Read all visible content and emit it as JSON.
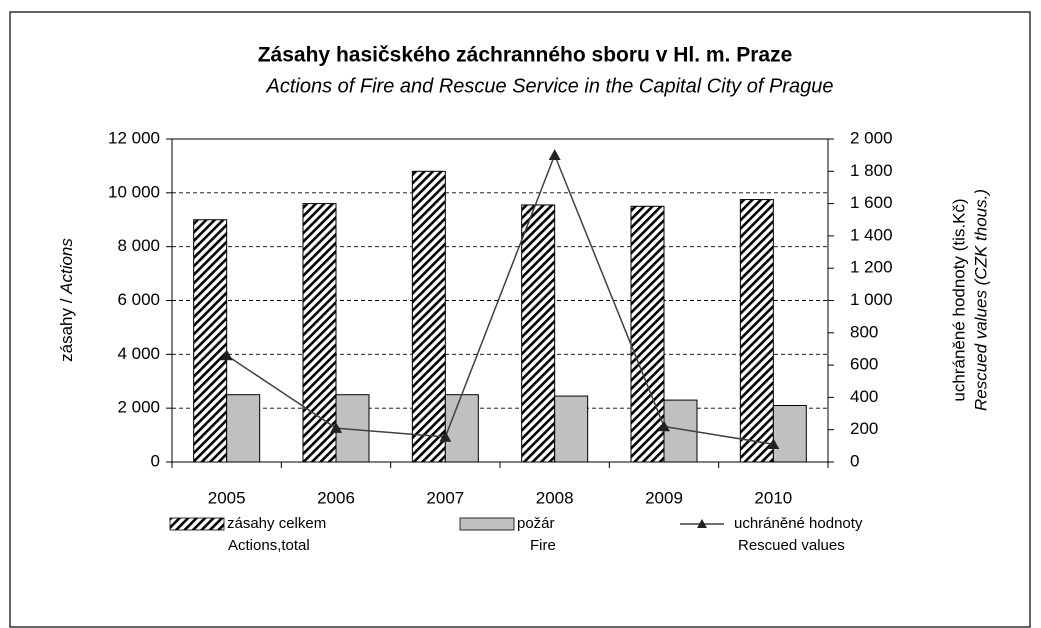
{
  "chart_data": {
    "type": "bar_line",
    "title": "Zásahy hasičského záchranného sboru v Hl. m. Praze",
    "subtitle": "Actions of Fire and Rescue Service in the Capital City of Prague",
    "ylabel": [
      "zásahy / ",
      "Actions"
    ],
    "y2label": [
      "uchráněné hodnoty (tis.Kč)",
      "Rescued values (CZK thous.)"
    ],
    "categories": [
      "2005",
      "2006",
      "2007",
      "2008",
      "2009",
      "2010"
    ],
    "series": [
      {
        "name": "zásahy celkem",
        "name_en": "Actions,total",
        "type": "bar",
        "color": "#000000",
        "hatch": true,
        "values": [
          9000,
          9600,
          10800,
          9550,
          9500,
          9750
        ]
      },
      {
        "name": "požár",
        "name_en": "Fire",
        "type": "bar",
        "color": "#c0c0c0",
        "values": [
          2500,
          2500,
          2500,
          2450,
          2300,
          2100
        ]
      },
      {
        "name": "uchráněné hodnoty",
        "name_en": "Rescued values",
        "type": "line",
        "axis": "y2",
        "color": "#404040",
        "values": [
          660,
          210,
          155,
          1900,
          220,
          110
        ]
      }
    ],
    "ylim": [
      0,
      12000
    ],
    "yticks": [
      0,
      {
        "value": 2000,
        "label": "2 000"
      },
      {
        "value": 4000,
        "label": "4 000"
      },
      {
        "value": 6000,
        "label": "6 000"
      },
      {
        "value": 8000,
        "label": "8 000"
      },
      {
        "value": 10000,
        "label": "10 000"
      },
      {
        "value": 12000,
        "label": "12 000"
      }
    ],
    "y2lim": [
      0,
      2000
    ],
    "y2ticks": [
      0,
      200,
      400,
      600,
      800,
      {
        "value": 1000,
        "label": "1 000"
      },
      {
        "value": 1200,
        "label": "1 200"
      },
      {
        "value": 1400,
        "label": "1 400"
      },
      {
        "value": 1600,
        "label": "1 600"
      },
      {
        "value": 1800,
        "label": "1 800"
      },
      {
        "value": 2000,
        "label": "2 000"
      }
    ],
    "grid": true
  }
}
